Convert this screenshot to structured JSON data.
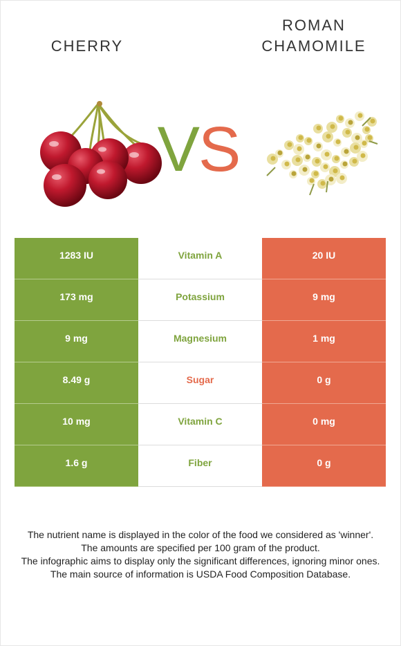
{
  "foods": {
    "left": {
      "name": "Cherry",
      "image_icon": "cherries-icon",
      "color": "#7fa43e"
    },
    "right": {
      "name": "Roman\nChamomile",
      "image_icon": "chamomile-flowers-icon",
      "color": "#e46a4c"
    }
  },
  "vs": {
    "v": "V",
    "s": "S"
  },
  "rows": [
    {
      "nutrient": "Vitamin A",
      "left": "1283 IU",
      "right": "20 IU",
      "winner": "left"
    },
    {
      "nutrient": "Potassium",
      "left": "173 mg",
      "right": "9 mg",
      "winner": "left"
    },
    {
      "nutrient": "Magnesium",
      "left": "9 mg",
      "right": "1 mg",
      "winner": "left"
    },
    {
      "nutrient": "Sugar",
      "left": "8.49 g",
      "right": "0 g",
      "winner": "right"
    },
    {
      "nutrient": "Vitamin C",
      "left": "10 mg",
      "right": "0 mg",
      "winner": "left"
    },
    {
      "nutrient": "Fiber",
      "left": "1.6 g",
      "right": "0 g",
      "winner": "left"
    }
  ],
  "footer": {
    "line1": "The nutrient name is displayed in the color of the food we considered as 'winner'.",
    "line2": "The amounts are specified per 100 gram of the product.",
    "line3": "The infographic aims to display only the significant differences, ignoring minor ones.",
    "line4": "The main source of information is USDA Food Composition Database."
  }
}
